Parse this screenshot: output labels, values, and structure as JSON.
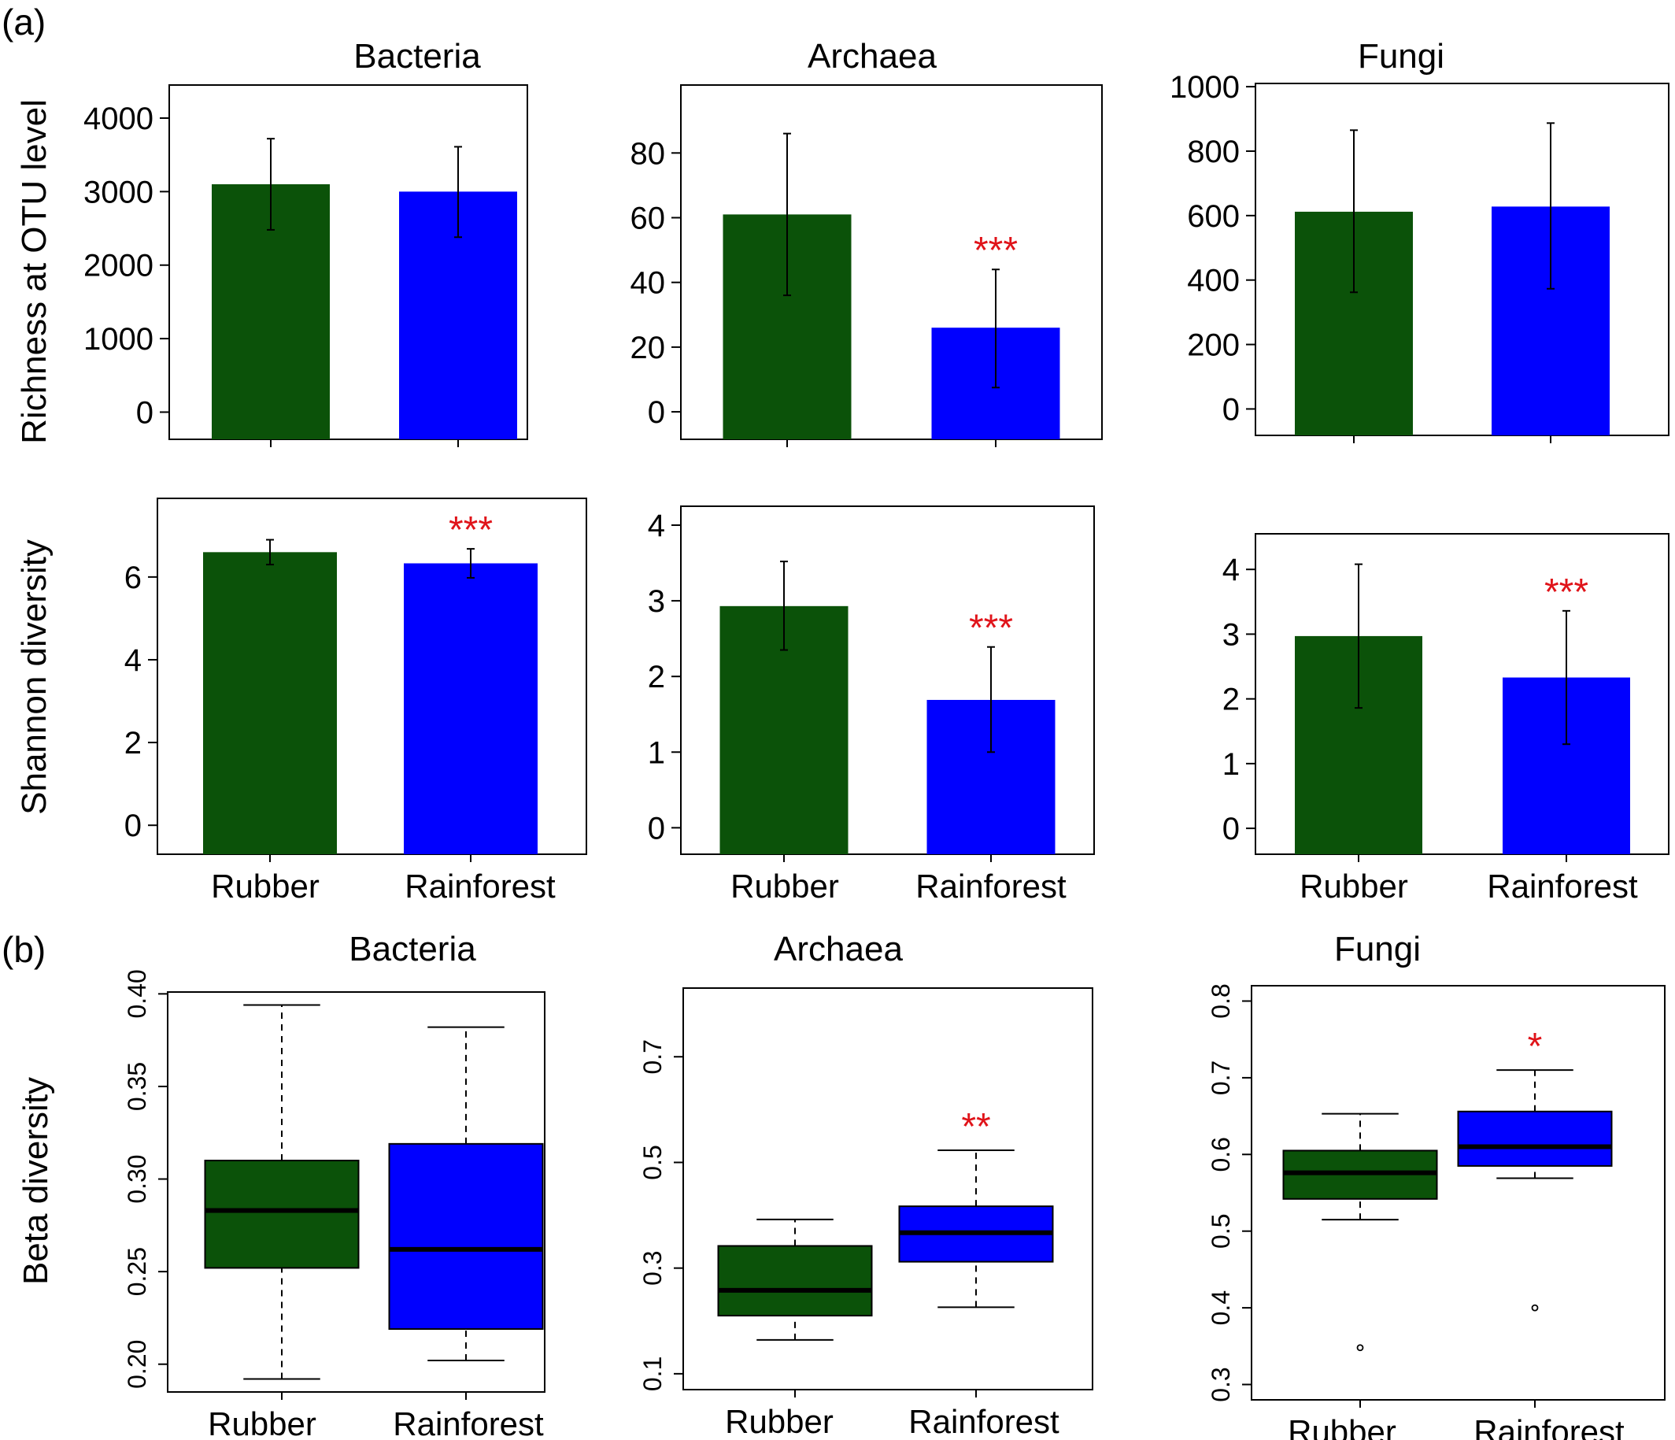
{
  "figure": {
    "panel_labels": [
      "(a)",
      "(b)"
    ],
    "colors": {
      "rubber": "#0b5209",
      "rainforest": "#0000ff",
      "significance": "#e0141a",
      "axis": "#000000"
    }
  },
  "chart_data": [
    {
      "type": "bar",
      "title": "Bacteria",
      "ylabel": "Richness at OTU level",
      "xlabel": "",
      "categories": [
        "Rubber",
        "Rainforest"
      ],
      "show_category_labels": false,
      "values": [
        3100,
        3000
      ],
      "error": [
        [
          2480,
          3720
        ],
        [
          2380,
          3610
        ]
      ],
      "significance": [
        "",
        ""
      ],
      "yticks": [
        0,
        1000,
        2000,
        3000,
        4000
      ],
      "ylim": [
        -370,
        4450
      ]
    },
    {
      "type": "bar",
      "title": "Archaea",
      "ylabel": "",
      "xlabel": "",
      "categories": [
        "Rubber",
        "Rainforest"
      ],
      "show_category_labels": false,
      "values": [
        61,
        26
      ],
      "error": [
        [
          36,
          86
        ],
        [
          7.5,
          44
        ]
      ],
      "significance": [
        "",
        "***"
      ],
      "yticks": [
        0,
        20,
        40,
        60,
        80
      ],
      "ylim": [
        -8.5,
        101
      ]
    },
    {
      "type": "bar",
      "title": "Fungi",
      "ylabel": "",
      "xlabel": "",
      "categories": [
        "Rubber",
        "Rainforest"
      ],
      "show_category_labels": false,
      "values": [
        612,
        628
      ],
      "error": [
        [
          362,
          865
        ],
        [
          373,
          887
        ]
      ],
      "significance": [
        "",
        ""
      ],
      "yticks": [
        0,
        200,
        400,
        600,
        800,
        1000
      ],
      "ylim": [
        -82,
        1010
      ]
    },
    {
      "type": "bar",
      "title": "",
      "ylabel": "Shannon diversity",
      "xlabel": "",
      "categories": [
        "Rubber",
        "Rainforest"
      ],
      "show_category_labels": true,
      "values": [
        6.6,
        6.33
      ],
      "error": [
        [
          6.3,
          6.9
        ],
        [
          5.98,
          6.68
        ]
      ],
      "significance": [
        "",
        "***"
      ],
      "yticks": [
        0,
        2,
        4,
        6
      ],
      "ylim": [
        -0.7,
        7.9
      ]
    },
    {
      "type": "bar",
      "title": "",
      "ylabel": "",
      "xlabel": "",
      "categories": [
        "Rubber",
        "Rainforest"
      ],
      "show_category_labels": true,
      "values": [
        2.93,
        1.69
      ],
      "error": [
        [
          2.35,
          3.52
        ],
        [
          1.0,
          2.39
        ]
      ],
      "significance": [
        "",
        "***"
      ],
      "yticks": [
        0,
        1,
        2,
        3,
        4
      ],
      "ylim": [
        -0.35,
        4.25
      ]
    },
    {
      "type": "bar",
      "title": "",
      "ylabel": "",
      "xlabel": "",
      "categories": [
        "Rubber",
        "Rainforest"
      ],
      "show_category_labels": true,
      "values": [
        2.97,
        2.33
      ],
      "error": [
        [
          1.86,
          4.08
        ],
        [
          1.3,
          3.36
        ]
      ],
      "significance": [
        "",
        "***"
      ],
      "yticks": [
        0,
        1,
        2,
        3,
        4
      ],
      "ylim": [
        -0.4,
        4.55
      ]
    },
    {
      "type": "box",
      "title": "Bacteria",
      "ylabel": "Beta diversity",
      "xlabel": "",
      "categories": [
        "Rubber",
        "Rainforest"
      ],
      "boxes": [
        {
          "whisker_low": 0.192,
          "q1": 0.252,
          "median": 0.283,
          "q3": 0.31,
          "whisker_high": 0.394,
          "outliers": []
        },
        {
          "whisker_low": 0.202,
          "q1": 0.219,
          "median": 0.262,
          "q3": 0.319,
          "whisker_high": 0.382,
          "outliers": []
        }
      ],
      "significance": [
        "",
        ""
      ],
      "yticks": [
        0.2,
        0.25,
        0.3,
        0.35,
        0.4
      ],
      "ytick_labels": [
        "0.20",
        "0.25",
        "0.30",
        "0.35",
        "0.40"
      ],
      "ylim": [
        0.185,
        0.401
      ]
    },
    {
      "type": "box",
      "title": "Archaea",
      "ylabel": "",
      "xlabel": "",
      "categories": [
        "Rubber",
        "Rainforest"
      ],
      "boxes": [
        {
          "whisker_low": 0.164,
          "q1": 0.21,
          "median": 0.258,
          "q3": 0.342,
          "whisker_high": 0.392,
          "outliers": []
        },
        {
          "whisker_low": 0.226,
          "q1": 0.312,
          "median": 0.367,
          "q3": 0.417,
          "whisker_high": 0.523,
          "outliers": []
        }
      ],
      "significance": [
        "",
        "**"
      ],
      "yticks": [
        0.1,
        0.3,
        0.5,
        0.7
      ],
      "ytick_labels": [
        "0.1",
        "0.3",
        "0.5",
        "0.7"
      ],
      "ylim": [
        0.07,
        0.83
      ]
    },
    {
      "type": "box",
      "title": "Fungi",
      "ylabel": "",
      "xlabel": "",
      "categories": [
        "Rubber",
        "Rainforest"
      ],
      "boxes": [
        {
          "whisker_low": 0.515,
          "q1": 0.542,
          "median": 0.576,
          "q3": 0.605,
          "whisker_high": 0.653,
          "outliers": [
            0.348
          ]
        },
        {
          "whisker_low": 0.569,
          "q1": 0.585,
          "median": 0.61,
          "q3": 0.656,
          "whisker_high": 0.71,
          "outliers": [
            0.4
          ]
        }
      ],
      "significance": [
        "",
        "*"
      ],
      "yticks": [
        0.3,
        0.4,
        0.5,
        0.6,
        0.7,
        0.8
      ],
      "ytick_labels": [
        "0.3",
        "0.4",
        "0.5",
        "0.6",
        "0.7",
        "0.8"
      ],
      "ylim": [
        0.28,
        0.82
      ]
    }
  ]
}
